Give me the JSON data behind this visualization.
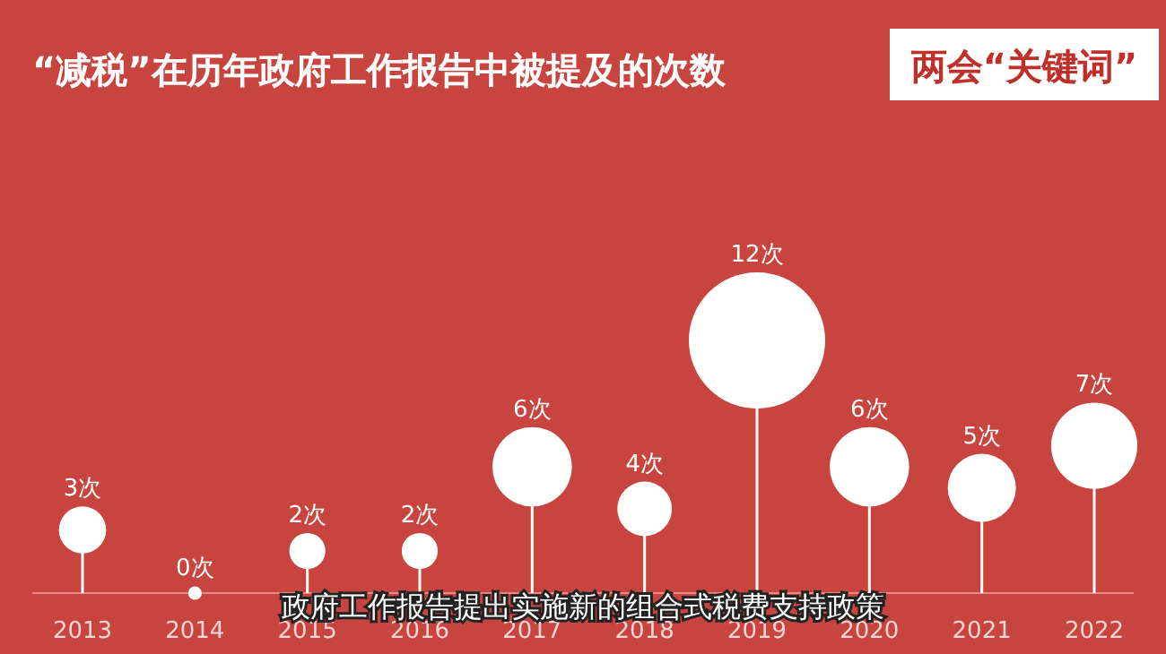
{
  "chart_data": {
    "type": "lollipop",
    "title": "“减税”在历年政府工作报告中被提及的次数",
    "categories": [
      "2013",
      "2014",
      "2015",
      "2016",
      "2017",
      "2018",
      "2019",
      "2020",
      "2021",
      "2022"
    ],
    "values": [
      3,
      0,
      2,
      2,
      6,
      4,
      12,
      6,
      5,
      7
    ],
    "value_labels": [
      "3次",
      "0次",
      "2次",
      "2次",
      "6次",
      "4次",
      "12次",
      "6次",
      "5次",
      "7次"
    ],
    "sizes": [
      0.12,
      0.01,
      0.07,
      0.07,
      0.34,
      0.16,
      1,
      0.34,
      0.25,
      0.4
    ],
    "color": "#ffffff",
    "annotations": [
      "两会“关键词”",
      "政府工作报告提出实施新的组合式税费支持政策"
    ]
  }
}
